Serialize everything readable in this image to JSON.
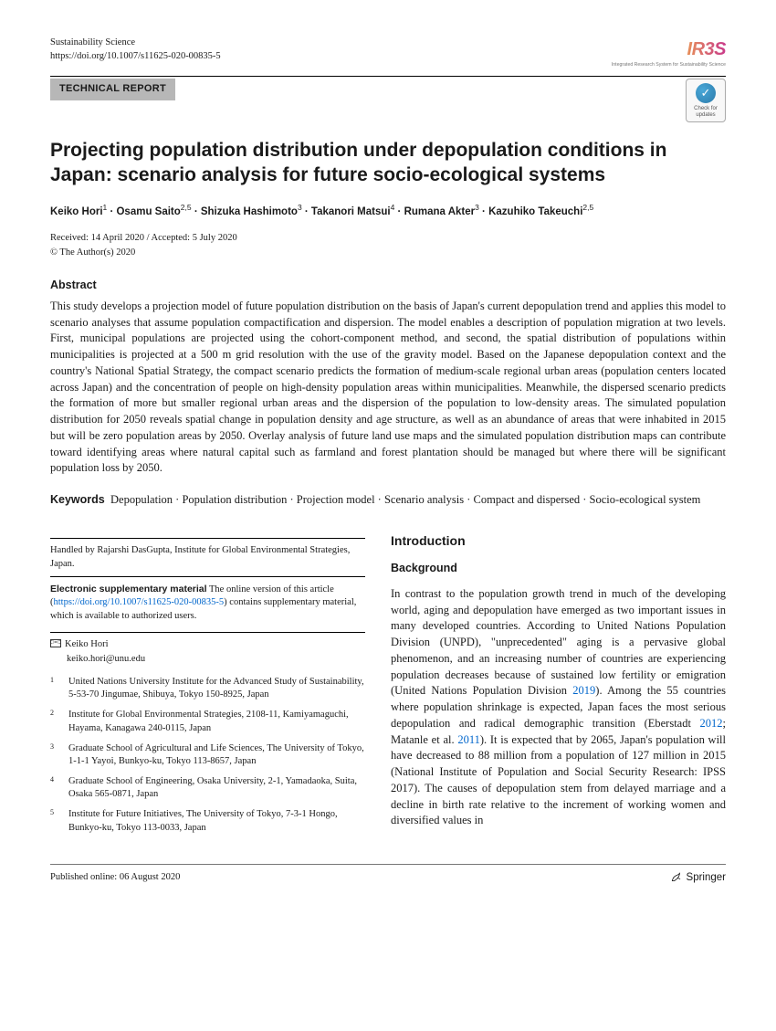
{
  "header": {
    "journal": "Sustainability Science",
    "doi_prefix": "https://doi.org/",
    "doi": "10.1007/s11625-020-00835-5",
    "logo_text": "IR3S",
    "logo_sub": "Integrated Research System for Sustainability Science",
    "category": "TECHNICAL REPORT",
    "updates_label": "Check for\nupdates"
  },
  "title": "Projecting population distribution under depopulation conditions in Japan: scenario analysis for future socio-ecological systems",
  "authors": [
    {
      "name": "Keiko Hori",
      "aff": "1"
    },
    {
      "name": "Osamu Saito",
      "aff": "2,5"
    },
    {
      "name": "Shizuka Hashimoto",
      "aff": "3"
    },
    {
      "name": "Takanori Matsui",
      "aff": "4"
    },
    {
      "name": "Rumana Akter",
      "aff": "3"
    },
    {
      "name": "Kazuhiko Takeuchi",
      "aff": "2,5"
    }
  ],
  "dates": "Received: 14 April 2020 / Accepted: 5 July 2020",
  "copyright": "© The Author(s) 2020",
  "abstract_heading": "Abstract",
  "abstract": "This study develops a projection model of future population distribution on the basis of Japan's current depopulation trend and applies this model to scenario analyses that assume population compactification and dispersion. The model enables a description of population migration at two levels. First, municipal populations are projected using the cohort-component method, and second, the spatial distribution of populations within municipalities is projected at a 500 m grid resolution with the use of the gravity model. Based on the Japanese depopulation context and the country's National Spatial Strategy, the compact scenario predicts the formation of medium-scale regional urban areas (population centers located across Japan) and the concentration of people on high-density population areas within municipalities. Meanwhile, the dispersed scenario predicts the formation of more but smaller regional urban areas and the dispersion of the population to low-density areas. The simulated population distribution for 2050 reveals spatial change in population density and age structure, as well as an abundance of areas that were inhabited in 2015 but will be zero population areas by 2050. Overlay analysis of future land use maps and the simulated population distribution maps can contribute toward identifying areas where natural capital such as farmland and forest plantation should be managed but where there will be significant population loss by 2050.",
  "keywords_label": "Keywords",
  "keywords": "Depopulation · Population distribution · Projection model · Scenario analysis · Compact and dispersed · Socio-ecological system",
  "handled_by": "Handled by Rajarshi DasGupta, Institute for Global Environmental Strategies, Japan.",
  "esm_label": "Electronic supplementary material",
  "esm_text_1": " The online version of this article (",
  "esm_link": "https://doi.org/10.1007/s11625-020-00835-5",
  "esm_text_2": ") contains supplementary material, which is available to authorized users.",
  "corr_name": "Keiko Hori",
  "corr_email": "keiko.hori@unu.edu",
  "affiliations": [
    {
      "n": "1",
      "text": "United Nations University Institute for the Advanced Study of Sustainability, 5-53-70 Jingumae, Shibuya, Tokyo 150-8925, Japan"
    },
    {
      "n": "2",
      "text": "Institute for Global Environmental Strategies, 2108-11, Kamiyamaguchi, Hayama, Kanagawa 240-0115, Japan"
    },
    {
      "n": "3",
      "text": "Graduate School of Agricultural and Life Sciences, The University of Tokyo, 1-1-1 Yayoi, Bunkyo-ku, Tokyo 113-8657, Japan"
    },
    {
      "n": "4",
      "text": "Graduate School of Engineering, Osaka University, 2-1, Yamadaoka, Suita, Osaka 565-0871, Japan"
    },
    {
      "n": "5",
      "text": "Institute for Future Initiatives, The University of Tokyo, 7-3-1 Hongo, Bunkyo-ku, Tokyo 113-0033, Japan"
    }
  ],
  "intro_heading": "Introduction",
  "background_heading": "Background",
  "body_para_1a": "In contrast to the population growth trend in much of the developing world, aging and depopulation have emerged as two important issues in many developed countries. According to United Nations Population Division (UNPD), \"unprecedented\" aging is a pervasive global phenomenon, and an increasing number of countries are experiencing population decreases because of sustained low fertility or emigration (United Nations Population Division ",
  "cite_1": "2019",
  "body_para_1b": "). Among the 55 countries where population shrinkage is expected, Japan faces the most serious depopulation and radical demographic transition (Eberstadt ",
  "cite_2": "2012",
  "body_para_1c": "; Matanle et al. ",
  "cite_3": "2011",
  "body_para_1d": "). It is expected that by 2065, Japan's population will have decreased to 88 million from a population of 127 million in 2015 (National Institute of Population and Social Security Research: IPSS 2017). The causes of depopulation stem from delayed marriage and a decline in birth rate relative to the increment of working women and diversified values in",
  "footer": {
    "published": "Published online: 06 August 2020",
    "publisher": "Springer"
  }
}
